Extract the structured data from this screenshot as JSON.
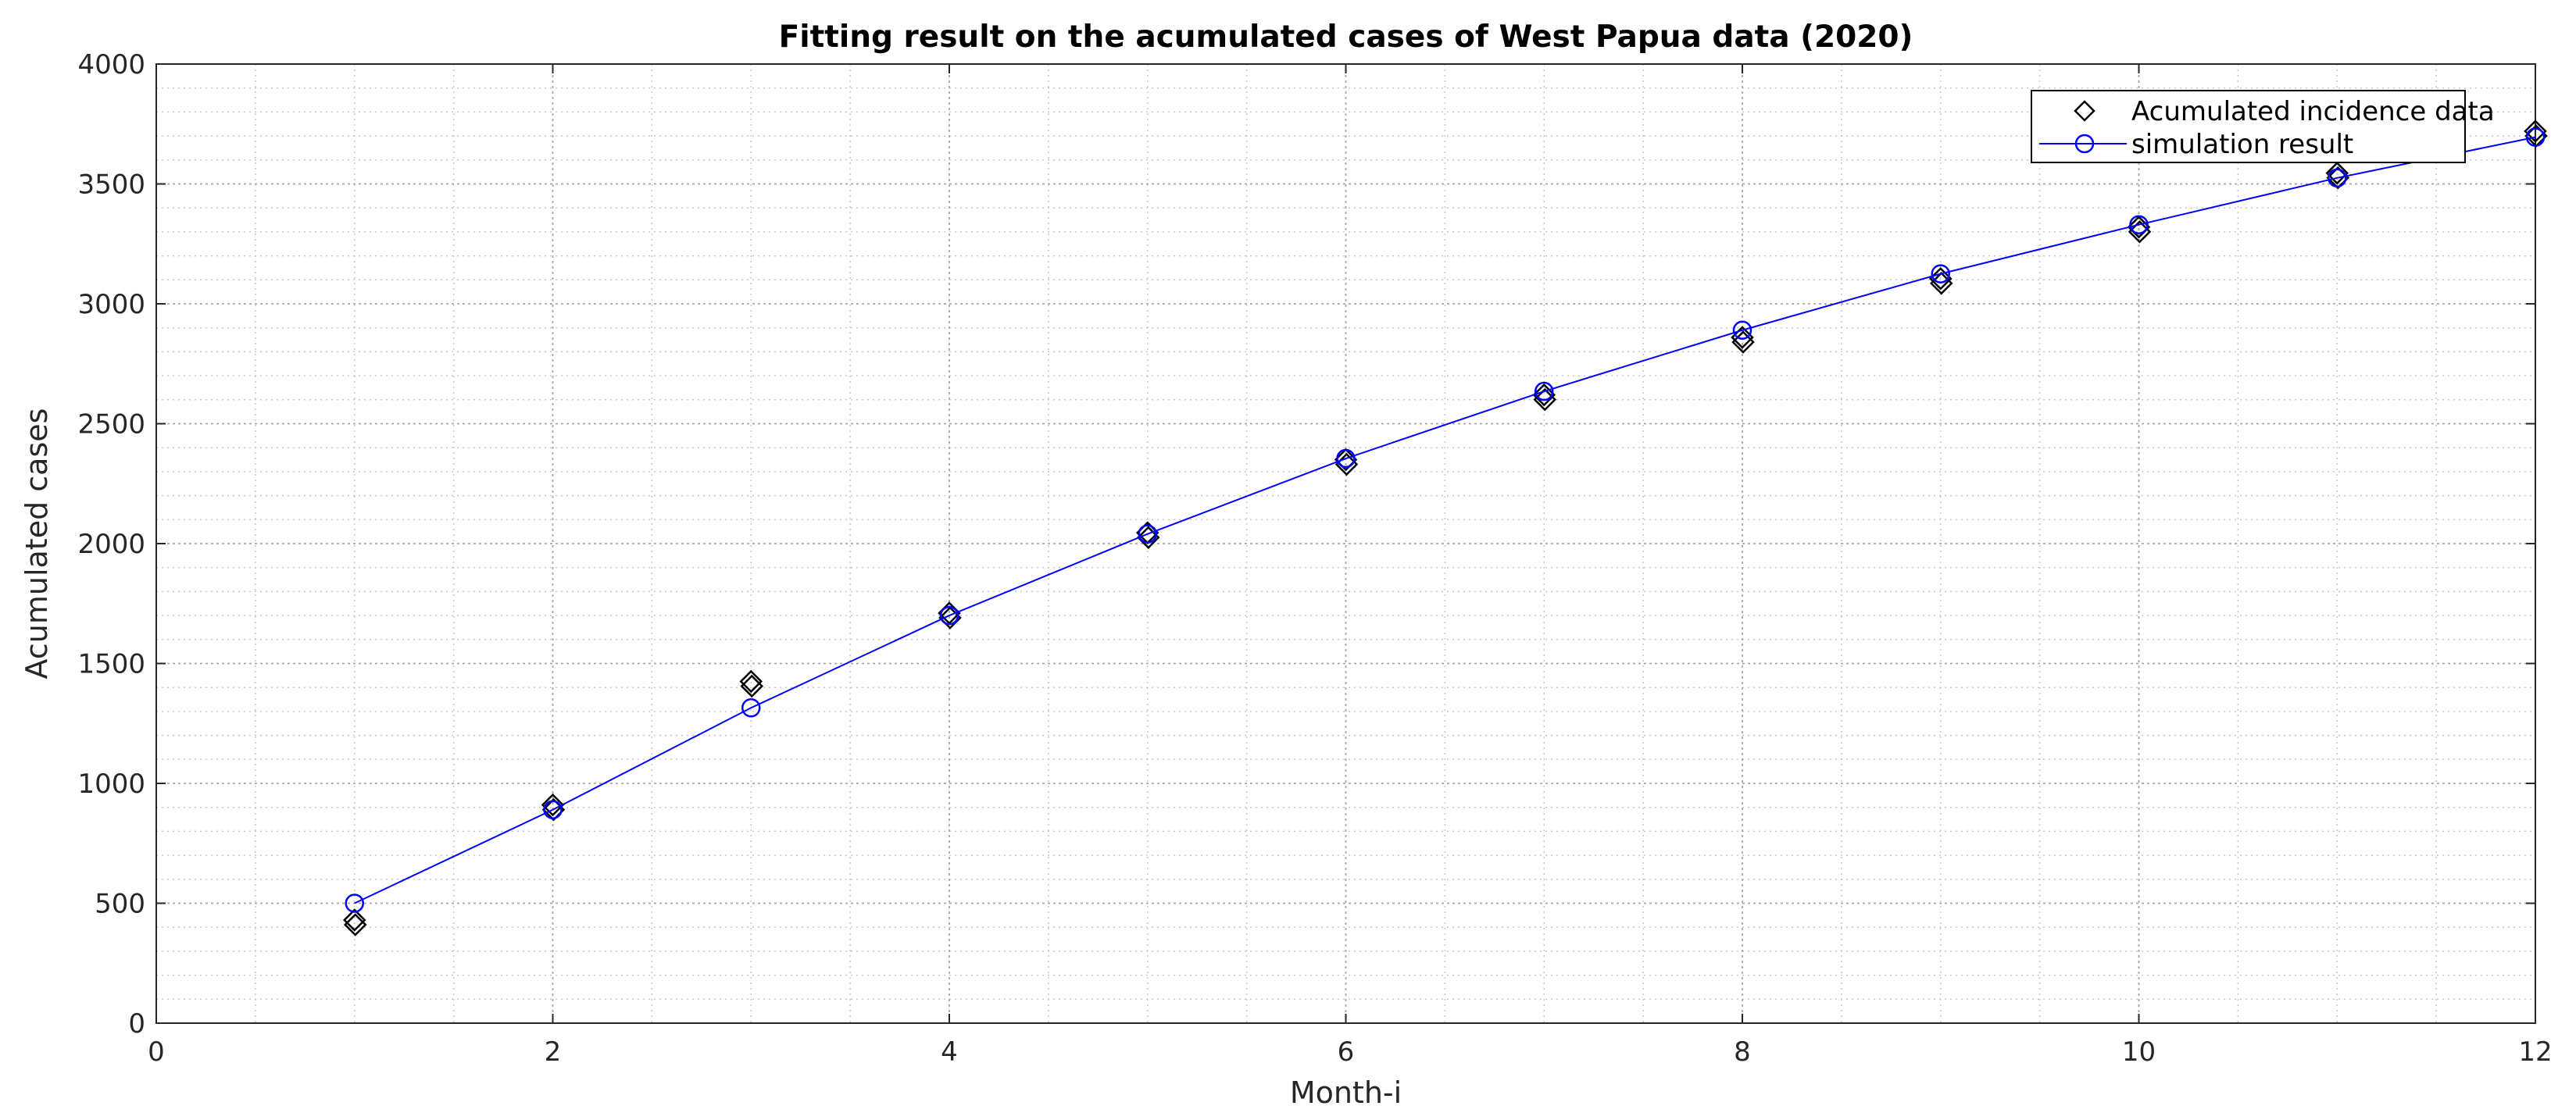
{
  "chart_data": {
    "type": "line",
    "title": "Fitting result on the acumulated cases of West Papua data (2020)",
    "xlabel": "Month-i",
    "ylabel": "Acumulated cases",
    "xlim": [
      0,
      12
    ],
    "ylim": [
      0,
      4000
    ],
    "xticks": [
      0,
      2,
      4,
      6,
      8,
      10,
      12
    ],
    "yticks": [
      0,
      500,
      1000,
      1500,
      2000,
      2500,
      3000,
      3500,
      4000
    ],
    "grid": true,
    "minor_grid": true,
    "legend_position": "top-right",
    "series": [
      {
        "name": "Acumulated incidence data",
        "style": "markers",
        "marker": "diamond",
        "color": "#000000",
        "x": [
          1,
          2,
          3,
          4,
          5,
          6,
          7,
          8,
          9,
          10,
          11,
          12
        ],
        "values": [
          430,
          910,
          1425,
          1710,
          2045,
          2350,
          2620,
          2860,
          3105,
          3320,
          3545,
          3720
        ]
      },
      {
        "name": "simulation result",
        "style": "line-markers",
        "marker": "circle",
        "color": "#0000ff",
        "x": [
          1,
          2,
          3,
          4,
          5,
          6,
          7,
          8,
          9,
          10,
          11,
          12
        ],
        "values": [
          500,
          890,
          1315,
          1700,
          2040,
          2355,
          2635,
          2890,
          3125,
          3330,
          3525,
          3695
        ]
      }
    ]
  }
}
